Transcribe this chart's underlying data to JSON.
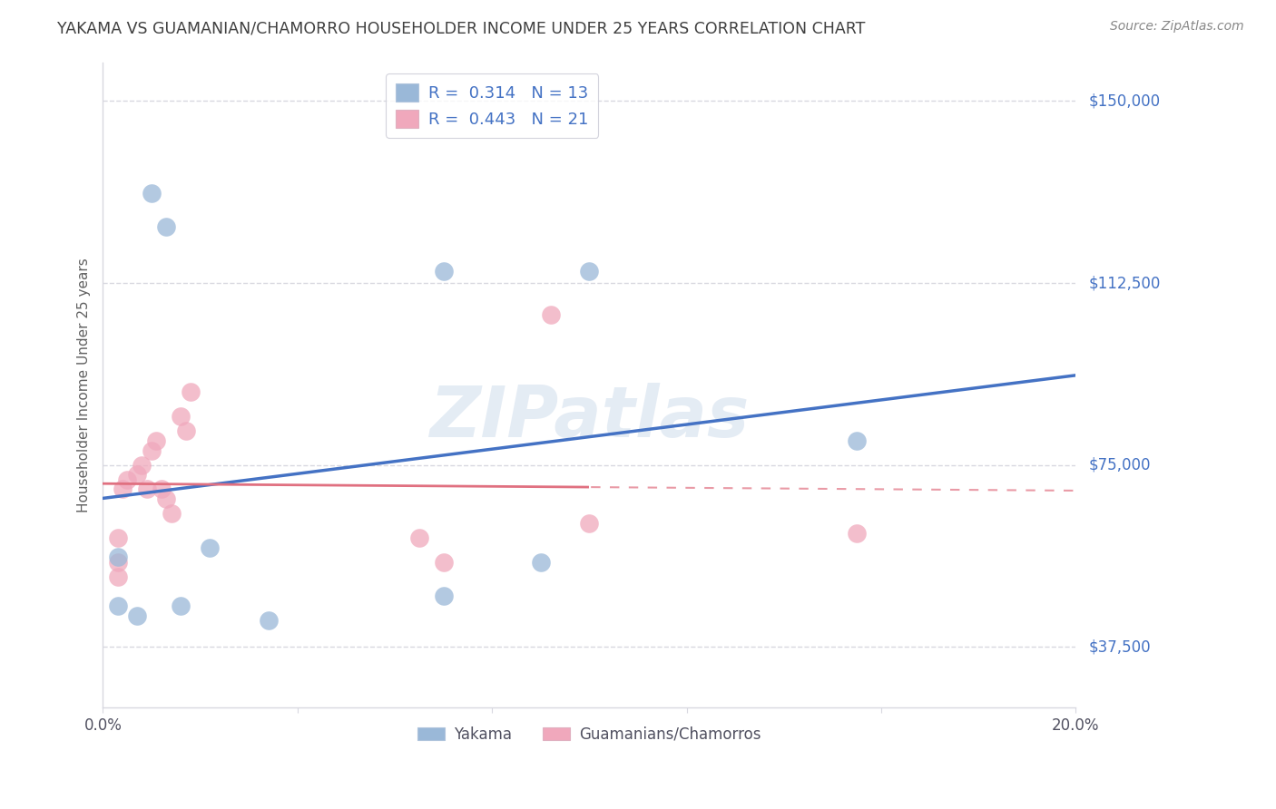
{
  "title": "YAKAMA VS GUAMANIAN/CHAMORRO HOUSEHOLDER INCOME UNDER 25 YEARS CORRELATION CHART",
  "source": "Source: ZipAtlas.com",
  "ylabel": "Householder Income Under 25 years",
  "ylabel_values": [
    37500,
    75000,
    112500,
    150000
  ],
  "ylabel_labels": [
    "$37,500",
    "$75,000",
    "$112,500",
    "$150,000"
  ],
  "xlim": [
    0.0,
    0.2
  ],
  "ylim": [
    25000,
    158000
  ],
  "legend_top": [
    "R =  0.314   N = 13",
    "R =  0.443   N = 21"
  ],
  "legend_bottom": [
    "Yakama",
    "Guamanians/Chamorros"
  ],
  "watermark": "ZIPatlas",
  "yakama_x": [
    0.01,
    0.013,
    0.003,
    0.003,
    0.007,
    0.016,
    0.022,
    0.034,
    0.09,
    0.1,
    0.155,
    0.07,
    0.07
  ],
  "yakama_y": [
    131000,
    124000,
    56000,
    46000,
    44000,
    46000,
    58000,
    43000,
    55000,
    115000,
    80000,
    115000,
    48000
  ],
  "guamanian_x": [
    0.003,
    0.003,
    0.003,
    0.004,
    0.005,
    0.007,
    0.008,
    0.009,
    0.01,
    0.011,
    0.012,
    0.013,
    0.014,
    0.016,
    0.017,
    0.018,
    0.065,
    0.07,
    0.092,
    0.1,
    0.155
  ],
  "guamanian_y": [
    60000,
    55000,
    52000,
    70000,
    72000,
    73000,
    75000,
    70000,
    78000,
    80000,
    70000,
    68000,
    65000,
    85000,
    82000,
    90000,
    60000,
    55000,
    106000,
    63000,
    61000
  ],
  "blue_line_color": "#4472c4",
  "pink_line_color": "#e07080",
  "dot_blue": "#9ab8d8",
  "dot_pink": "#f0a8bc",
  "grid_color": "#d8d8e0",
  "background_color": "#ffffff",
  "title_color": "#404040",
  "source_color": "#888888",
  "accent_color": "#4472c4"
}
